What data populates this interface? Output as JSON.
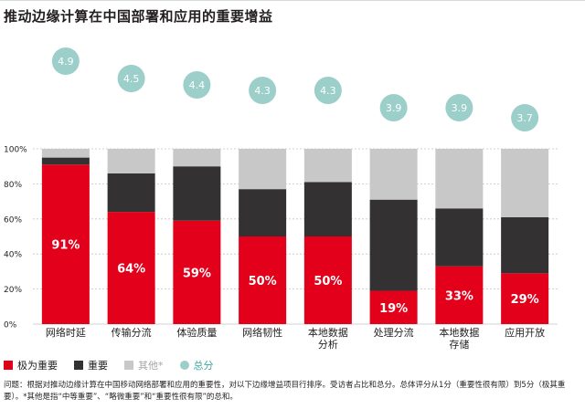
{
  "chart_data": {
    "type": "bar",
    "stacked": true,
    "title": "推动边缘计算在中国部署和应用的重要增益",
    "categories": [
      "网络时延",
      "传输分流",
      "体验质量",
      "网络韧性",
      "本地数据\n分析",
      "处理分流",
      "本地数据\n存储",
      "应用开放"
    ],
    "series": [
      {
        "name": "极为重要",
        "values": [
          91,
          64,
          59,
          50,
          50,
          19,
          33,
          29
        ],
        "labels": [
          "91%",
          "64%",
          "59%",
          "50%",
          "50%",
          "19%",
          "33%",
          "29%"
        ]
      },
      {
        "name": "重要",
        "values": [
          4,
          22,
          31,
          27,
          31,
          52,
          33,
          32
        ]
      },
      {
        "name": "其他*",
        "values": [
          5,
          14,
          10,
          23,
          19,
          29,
          34,
          39
        ]
      }
    ],
    "total_scores": {
      "name": "总分",
      "values": [
        "4.9",
        "4.5",
        "4.4",
        "4.3",
        "4.3",
        "3.9",
        "3.9",
        "3.7"
      ]
    },
    "yticks": [
      "0%",
      "20%",
      "40%",
      "60%",
      "80%",
      "100%"
    ],
    "ylim": [
      0,
      100
    ],
    "xlabel": "",
    "ylabel": "",
    "legend_position": "bottom-left"
  },
  "colors": {
    "very_important": "#e3001b",
    "important": "#333132",
    "other": "#c8c8c8",
    "score_bubble": "#9ccfc9",
    "legend_other_text": "#a6a6a6",
    "legend_score_text": "#3aa8a0"
  },
  "legend": {
    "very_important": "极为重要",
    "important": "重要",
    "other": "其他*",
    "total": "总分"
  },
  "footnote": "问题：根据对推动边缘计算在中国移动网络部署和应用的重要性，对以下边缘增益项目行排序。受访者占比和总分。总体评分从1分（重要性很有限）到5分（极其重要）。*其他是指“中等重要”、“略微重要”和“重要性很有限”的总和。"
}
